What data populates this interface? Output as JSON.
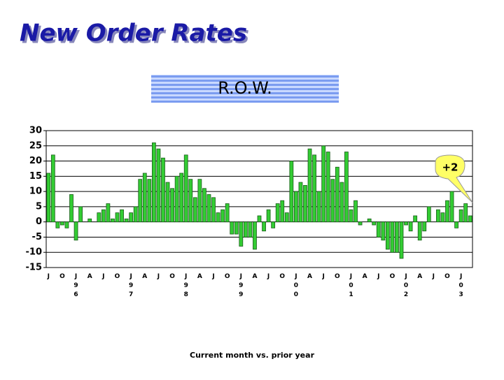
{
  "chart_data": {
    "type": "bar",
    "title": "New Order Rates",
    "subtitle": "R.O.W.",
    "x_label": "Current month vs. prior year",
    "annotation": "+2",
    "color": "#33cc33",
    "grid": true,
    "ylim": [
      -15,
      30
    ],
    "yticks": [
      -15,
      -10,
      -5,
      0,
      5,
      10,
      15,
      20,
      25,
      30
    ],
    "categories": [
      "J",
      null,
      null,
      "O",
      null,
      null,
      "J96",
      null,
      null,
      "A",
      null,
      null,
      "J",
      null,
      null,
      "O",
      null,
      null,
      "J97",
      null,
      null,
      "A",
      null,
      null,
      "J",
      null,
      null,
      "O",
      null,
      null,
      "J98",
      null,
      null,
      "A",
      null,
      null,
      "J",
      null,
      null,
      "O",
      null,
      null,
      "J99",
      null,
      null,
      "A",
      null,
      null,
      "J",
      null,
      null,
      "O",
      null,
      null,
      "J00",
      null,
      null,
      "A",
      null,
      null,
      "J",
      null,
      null,
      "O",
      null,
      null,
      "J01",
      null,
      null,
      "A",
      null,
      null,
      "J",
      null,
      null,
      "O",
      null,
      null,
      "J02",
      null,
      null,
      "A",
      null,
      null,
      "J",
      null,
      null,
      "O",
      null,
      null,
      "J03",
      null,
      null
    ],
    "values": [
      16,
      22,
      -2,
      -1,
      -2,
      9,
      -6,
      5,
      0,
      1,
      0,
      3,
      4,
      6,
      1,
      3,
      4,
      1,
      3,
      5,
      14,
      16,
      14,
      26,
      24,
      21,
      13,
      11,
      15,
      16,
      22,
      14,
      8,
      14,
      11,
      9,
      8,
      3,
      4,
      6,
      -4,
      -4,
      -8,
      -5,
      -5,
      -9,
      2,
      -3,
      4,
      -2,
      6,
      7,
      3,
      20,
      10,
      13,
      12,
      24,
      22,
      10,
      25,
      23,
      14,
      18,
      13,
      23,
      4,
      7,
      -1,
      0,
      1,
      -1,
      -5,
      -6,
      -9,
      -10,
      -10,
      -12,
      -1,
      -3,
      2,
      -6,
      -3,
      5,
      0,
      4,
      3,
      7,
      10,
      -2,
      4,
      6,
      2
    ]
  }
}
